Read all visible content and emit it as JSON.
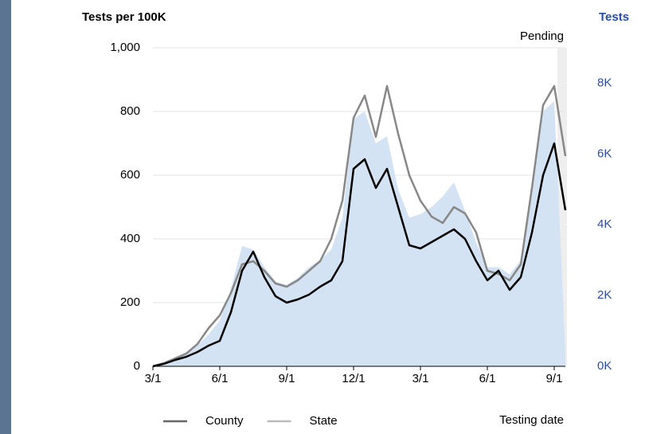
{
  "chart_data": {
    "type": "line",
    "title": "Tests per 100K",
    "y2_title": "Tests",
    "annotation": "Pending",
    "xlabel": "Testing date",
    "categories": [
      "3/1",
      null,
      null,
      null,
      null,
      null,
      "6/1",
      null,
      null,
      null,
      null,
      null,
      "9/1",
      null,
      null,
      null,
      null,
      null,
      "12/1",
      null,
      null,
      null,
      null,
      null,
      "3/1",
      null,
      null,
      null,
      null,
      null,
      "6/1",
      null,
      null,
      null,
      null,
      null,
      "9/1",
      null
    ],
    "series": [
      {
        "name": "County",
        "color": "#000000",
        "legend_color": "#666666",
        "values": [
          0,
          8,
          20,
          30,
          45,
          65,
          80,
          170,
          300,
          360,
          280,
          220,
          200,
          210,
          225,
          250,
          270,
          330,
          620,
          650,
          560,
          620,
          500,
          380,
          370,
          390,
          410,
          430,
          400,
          330,
          270,
          300,
          240,
          280,
          420,
          600,
          700,
          490
        ]
      },
      {
        "name": "State",
        "color": "#888888",
        "legend_color": "#bbbbbb",
        "values": [
          0,
          10,
          25,
          40,
          70,
          120,
          160,
          230,
          320,
          330,
          300,
          260,
          250,
          270,
          300,
          330,
          400,
          520,
          780,
          850,
          720,
          880,
          730,
          600,
          520,
          470,
          450,
          500,
          480,
          420,
          300,
          290,
          270,
          320,
          560,
          820,
          880,
          660
        ]
      },
      {
        "color": "#d4e3f3",
        "axis": "y2",
        "values": [
          0,
          100,
          250,
          400,
          600,
          900,
          1300,
          2200,
          3400,
          3300,
          2800,
          2400,
          2300,
          2500,
          2800,
          3000,
          3300,
          4200,
          7000,
          7200,
          6300,
          6500,
          5000,
          4200,
          4300,
          4500,
          4800,
          5200,
          4400,
          3500,
          2800,
          2800,
          2600,
          3000,
          5000,
          7200,
          7500,
          400
        ]
      }
    ],
    "ylim": [
      0,
      1000
    ],
    "yticks": [
      0,
      200,
      400,
      600,
      800,
      {
        "value": 1000,
        "label": "1,000"
      }
    ],
    "y2lim": [
      0,
      9000
    ],
    "y2ticks": [
      {
        "value": 0,
        "label": "0K"
      },
      {
        "value": 2000,
        "label": "2K"
      },
      {
        "value": 4000,
        "label": "4K"
      },
      {
        "value": 6000,
        "label": "6K"
      },
      {
        "value": 8000,
        "label": "8K"
      }
    ],
    "grid": true
  }
}
